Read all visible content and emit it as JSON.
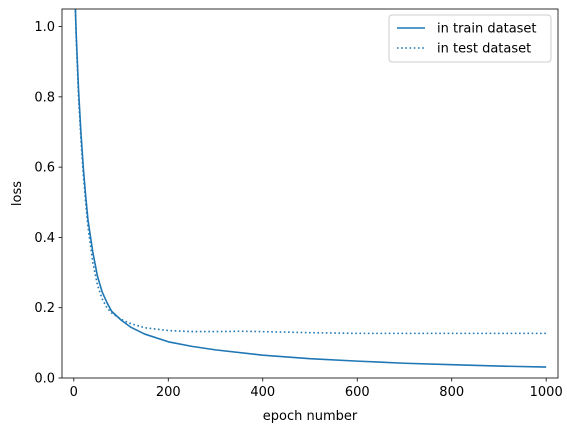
{
  "chart_data": {
    "type": "line",
    "xlabel": "epoch number",
    "ylabel": "loss",
    "xlim": [
      -25,
      1025
    ],
    "ylim": [
      0.0,
      1.05
    ],
    "x_ticks": [
      0,
      200,
      400,
      600,
      800,
      1000
    ],
    "x_tick_labels": [
      "0",
      "200",
      "400",
      "600",
      "800",
      "1000"
    ],
    "y_ticks": [
      0.0,
      0.2,
      0.4,
      0.6,
      0.8,
      1.0
    ],
    "y_tick_labels": [
      "0.0",
      "0.2",
      "0.4",
      "0.6",
      "0.8",
      "1.0"
    ],
    "grid": false,
    "legend_position": "top-right",
    "series": [
      {
        "name": "in train dataset",
        "color": "#1f77b4",
        "style": "solid",
        "x": [
          0,
          5,
          10,
          15,
          20,
          25,
          30,
          40,
          50,
          60,
          70,
          80,
          100,
          120,
          150,
          200,
          250,
          300,
          400,
          500,
          600,
          700,
          800,
          900,
          1000
        ],
        "y": [
          1.2,
          0.98,
          0.82,
          0.7,
          0.6,
          0.52,
          0.45,
          0.36,
          0.29,
          0.245,
          0.215,
          0.19,
          0.165,
          0.145,
          0.125,
          0.103,
          0.09,
          0.08,
          0.065,
          0.055,
          0.048,
          0.042,
          0.038,
          0.034,
          0.031
        ]
      },
      {
        "name": "in test dataset",
        "color": "#1f77b4",
        "style": "dotted",
        "x": [
          0,
          5,
          10,
          15,
          20,
          25,
          30,
          40,
          50,
          60,
          70,
          80,
          100,
          120,
          150,
          200,
          250,
          300,
          350,
          400,
          500,
          600,
          700,
          800,
          900,
          1000
        ],
        "y": [
          1.2,
          0.97,
          0.8,
          0.68,
          0.58,
          0.5,
          0.43,
          0.33,
          0.265,
          0.225,
          0.2,
          0.185,
          0.167,
          0.155,
          0.143,
          0.135,
          0.132,
          0.132,
          0.133,
          0.132,
          0.129,
          0.127,
          0.127,
          0.127,
          0.127,
          0.127
        ]
      }
    ]
  }
}
